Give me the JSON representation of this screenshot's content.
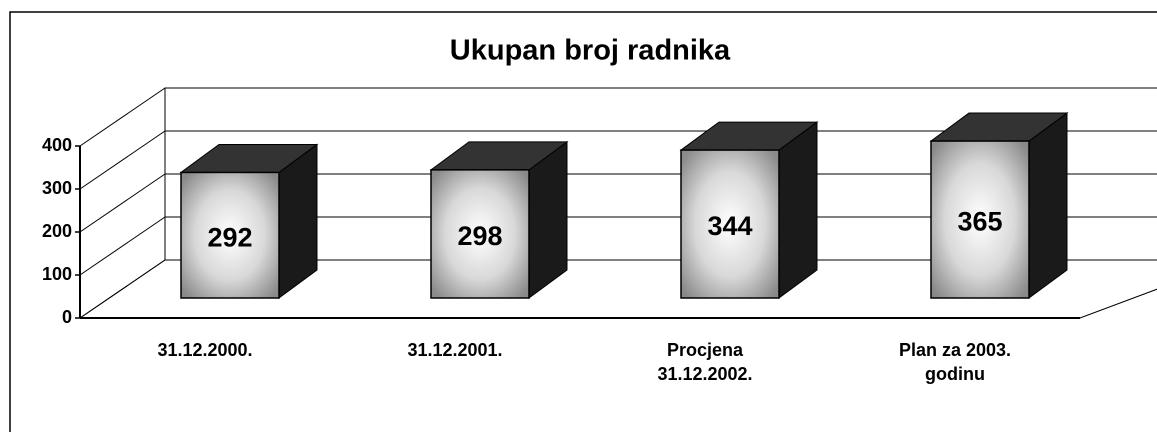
{
  "chart_data": {
    "type": "bar3d",
    "title": "Ukupan broj radnika",
    "categories": [
      "31.12.2000.",
      "31.12.2001.",
      "Procjena 31.12.2002.",
      "Plan za 2003. godinu"
    ],
    "values": [
      292,
      298,
      344,
      365
    ],
    "ylim": [
      0,
      400
    ],
    "yticks": [
      0,
      100,
      200,
      300,
      400
    ],
    "grid": true,
    "color": "#1a1a1a"
  }
}
